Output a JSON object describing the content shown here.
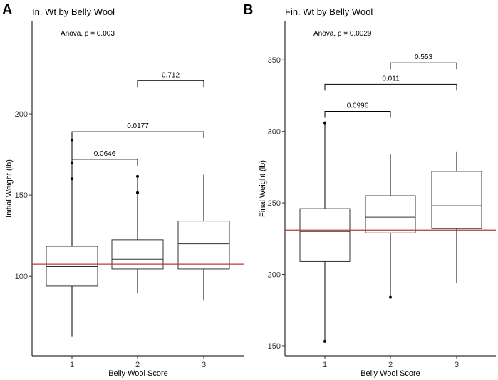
{
  "chart_data": [
    {
      "type": "boxplot",
      "panel_label": "A",
      "title": "In. Wt by Belly Wool",
      "xlabel": "Belly Wool Score",
      "ylabel": "Initial Weight (lb)",
      "categories": [
        "1",
        "2",
        "3"
      ],
      "ylim": [
        51,
        257
      ],
      "yticks": [
        100,
        150,
        200
      ],
      "reference_line": 107.5,
      "reference_color": "#c0392b",
      "anova_text": "Anova, p = 0.003",
      "boxes": [
        {
          "category": "1",
          "q1": 94,
          "median": 106,
          "q3": 118.5,
          "whisker_low": 63,
          "whisker_high": 184,
          "outliers": [
            160,
            170,
            184
          ]
        },
        {
          "category": "2",
          "q1": 104.5,
          "median": 110.5,
          "q3": 122.5,
          "whisker_low": 89.5,
          "whisker_high": 161.5,
          "outliers": [
            151.5,
            161.5
          ]
        },
        {
          "category": "3",
          "q1": 104.5,
          "median": 120,
          "q3": 134,
          "whisker_low": 85,
          "whisker_high": 162.5,
          "outliers": []
        }
      ],
      "comparisons": [
        {
          "from": "1",
          "to": "2",
          "y": 172,
          "label": "0.0646"
        },
        {
          "from": "1",
          "to": "3",
          "y": 189,
          "label": "0.0177"
        },
        {
          "from": "2",
          "to": "3",
          "y": 220.5,
          "label": "0.712"
        }
      ]
    },
    {
      "type": "boxplot",
      "panel_label": "B",
      "title": "Fin. Wt by Belly Wool",
      "xlabel": "Belly Wool Score",
      "ylabel": "Final Weight (lb)",
      "categories": [
        "1",
        "2",
        "3"
      ],
      "ylim": [
        143,
        377
      ],
      "yticks": [
        150,
        200,
        250,
        300,
        350
      ],
      "reference_line": 231,
      "reference_color": "#c0392b",
      "anova_text": "Anova, p = 0.0029",
      "boxes": [
        {
          "category": "1",
          "q1": 209,
          "median": 230,
          "q3": 246,
          "whisker_low": 153,
          "whisker_high": 306,
          "outliers": [
            153,
            306
          ]
        },
        {
          "category": "2",
          "q1": 229,
          "median": 240,
          "q3": 255,
          "whisker_low": 184,
          "whisker_high": 284,
          "outliers": [
            184
          ]
        },
        {
          "category": "3",
          "q1": 232,
          "median": 248,
          "q3": 272,
          "whisker_low": 194,
          "whisker_high": 286,
          "outliers": []
        }
      ],
      "comparisons": [
        {
          "from": "1",
          "to": "2",
          "y": 314,
          "label": "0.0996"
        },
        {
          "from": "1",
          "to": "3",
          "y": 333,
          "label": "0.011"
        },
        {
          "from": "2",
          "to": "3",
          "y": 348,
          "label": "0.553"
        }
      ]
    }
  ]
}
